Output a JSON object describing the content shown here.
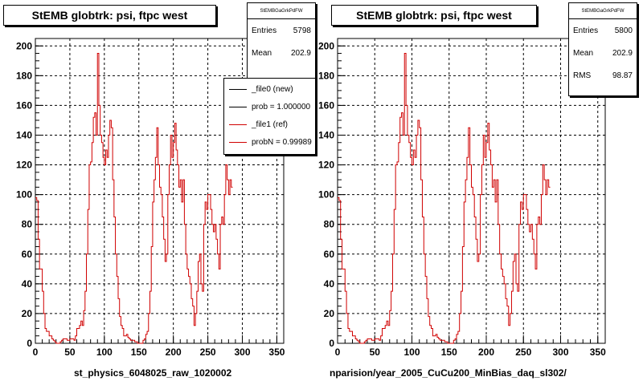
{
  "colors": {
    "ref": "#d00000",
    "new": "#000000",
    "grid": "#000000",
    "frame": "#000000"
  },
  "left_panel": {
    "title": "StEMB globtrk: psi, ftpc west",
    "stats": {
      "header": "StEMBGaGrkPdFW",
      "rows": [
        {
          "label": "Entries",
          "value": "5798"
        },
        {
          "label": "Mean",
          "value": "202.9"
        }
      ]
    },
    "legend": [
      {
        "label": "_file0 (new)",
        "color": "#000000"
      },
      {
        "label": "prob = 1.000000",
        "color": "#000000"
      },
      {
        "label": "_file1 (ref)",
        "color": "#d00000"
      },
      {
        "label": "probN = 0.99989",
        "color": "#d00000"
      }
    ],
    "x_caption": "st_physics_6048025_raw_1020002"
  },
  "right_panel": {
    "title": "StEMB globtrk: psi, ftpc west",
    "stats": {
      "header": "StEMBGaGrkPdFW",
      "rows": [
        {
          "label": "Entries",
          "value": "5800"
        },
        {
          "label": "Mean",
          "value": "202.9"
        },
        {
          "label": "RMS",
          "value": "98.87"
        }
      ]
    },
    "x_caption": "nparision/year_2005_CuCu200_MinBias_daq_sl302/"
  },
  "footer_note": "",
  "chart_data": [
    {
      "type": "line",
      "title": "StEMB globtrk: psi, ftpc west",
      "xlabel": "",
      "ylabel": "",
      "xlim": [
        0,
        360
      ],
      "ylim": [
        0,
        205
      ],
      "x_ticks": [
        0,
        50,
        100,
        150,
        200,
        250,
        300,
        350
      ],
      "y_ticks": [
        0,
        20,
        40,
        60,
        80,
        100,
        120,
        140,
        160,
        180,
        200
      ],
      "grid": true,
      "bin_width": 2,
      "series": [
        {
          "name": "_file1 (ref)",
          "color": "#d00000",
          "values": [
            98,
            96,
            70,
            50,
            50,
            35,
            20,
            10,
            8,
            8,
            5,
            5,
            3,
            2,
            1,
            0,
            0,
            0,
            1,
            2,
            3,
            3,
            3,
            2,
            2,
            3,
            3,
            3,
            2,
            5,
            10,
            10,
            12,
            15,
            12,
            22,
            35,
            60,
            90,
            120,
            122,
            135,
            152,
            155,
            140,
            195,
            160,
            140,
            135,
            125,
            120,
            130,
            125,
            140,
            150,
            145,
            110,
            85,
            60,
            45,
            30,
            18,
            12,
            10,
            5,
            5,
            6,
            4,
            3,
            2,
            2,
            2,
            1,
            1,
            0,
            0,
            0,
            0,
            2,
            3,
            6,
            8,
            20,
            35,
            65,
            95,
            110,
            125,
            145,
            120,
            105,
            100,
            85,
            70,
            55,
            60,
            100,
            120,
            140,
            125,
            135,
            148,
            130,
            120,
            105,
            110,
            95,
            110,
            80,
            60,
            50,
            45,
            40,
            30,
            25,
            12,
            20,
            35,
            55,
            60,
            40,
            35,
            80,
            95,
            90,
            100,
            100,
            90,
            80,
            75,
            80,
            70,
            60,
            50,
            80,
            85,
            80,
            100,
            120,
            110,
            100,
            110,
            105
          ]
        }
      ]
    },
    {
      "type": "line",
      "title": "StEMB globtrk: psi, ftpc west",
      "xlabel": "",
      "ylabel": "",
      "xlim": [
        0,
        360
      ],
      "ylim": [
        0,
        205
      ],
      "x_ticks": [
        0,
        50,
        100,
        150,
        200,
        250,
        300,
        350
      ],
      "y_ticks": [
        0,
        20,
        40,
        60,
        80,
        100,
        120,
        140,
        160,
        180,
        200
      ],
      "grid": true,
      "bin_width": 2,
      "series": [
        {
          "name": "",
          "color": "#d00000",
          "values": [
            98,
            96,
            70,
            50,
            50,
            35,
            20,
            10,
            8,
            8,
            5,
            5,
            3,
            2,
            1,
            0,
            0,
            0,
            1,
            2,
            3,
            3,
            3,
            2,
            2,
            3,
            3,
            3,
            2,
            5,
            10,
            10,
            12,
            15,
            12,
            22,
            35,
            60,
            90,
            120,
            122,
            135,
            152,
            155,
            140,
            195,
            160,
            140,
            135,
            125,
            120,
            130,
            125,
            140,
            150,
            145,
            110,
            85,
            60,
            45,
            30,
            18,
            12,
            10,
            5,
            5,
            6,
            4,
            3,
            2,
            2,
            2,
            1,
            1,
            0,
            0,
            0,
            0,
            2,
            3,
            6,
            8,
            20,
            35,
            65,
            95,
            110,
            125,
            145,
            120,
            105,
            100,
            85,
            70,
            55,
            60,
            100,
            120,
            140,
            125,
            135,
            148,
            130,
            120,
            105,
            110,
            95,
            110,
            80,
            60,
            50,
            45,
            40,
            30,
            25,
            12,
            20,
            35,
            55,
            60,
            40,
            35,
            80,
            95,
            90,
            100,
            100,
            90,
            80,
            75,
            80,
            70,
            60,
            50,
            80,
            85,
            80,
            100,
            120,
            110,
            100,
            110,
            105
          ]
        }
      ]
    }
  ]
}
